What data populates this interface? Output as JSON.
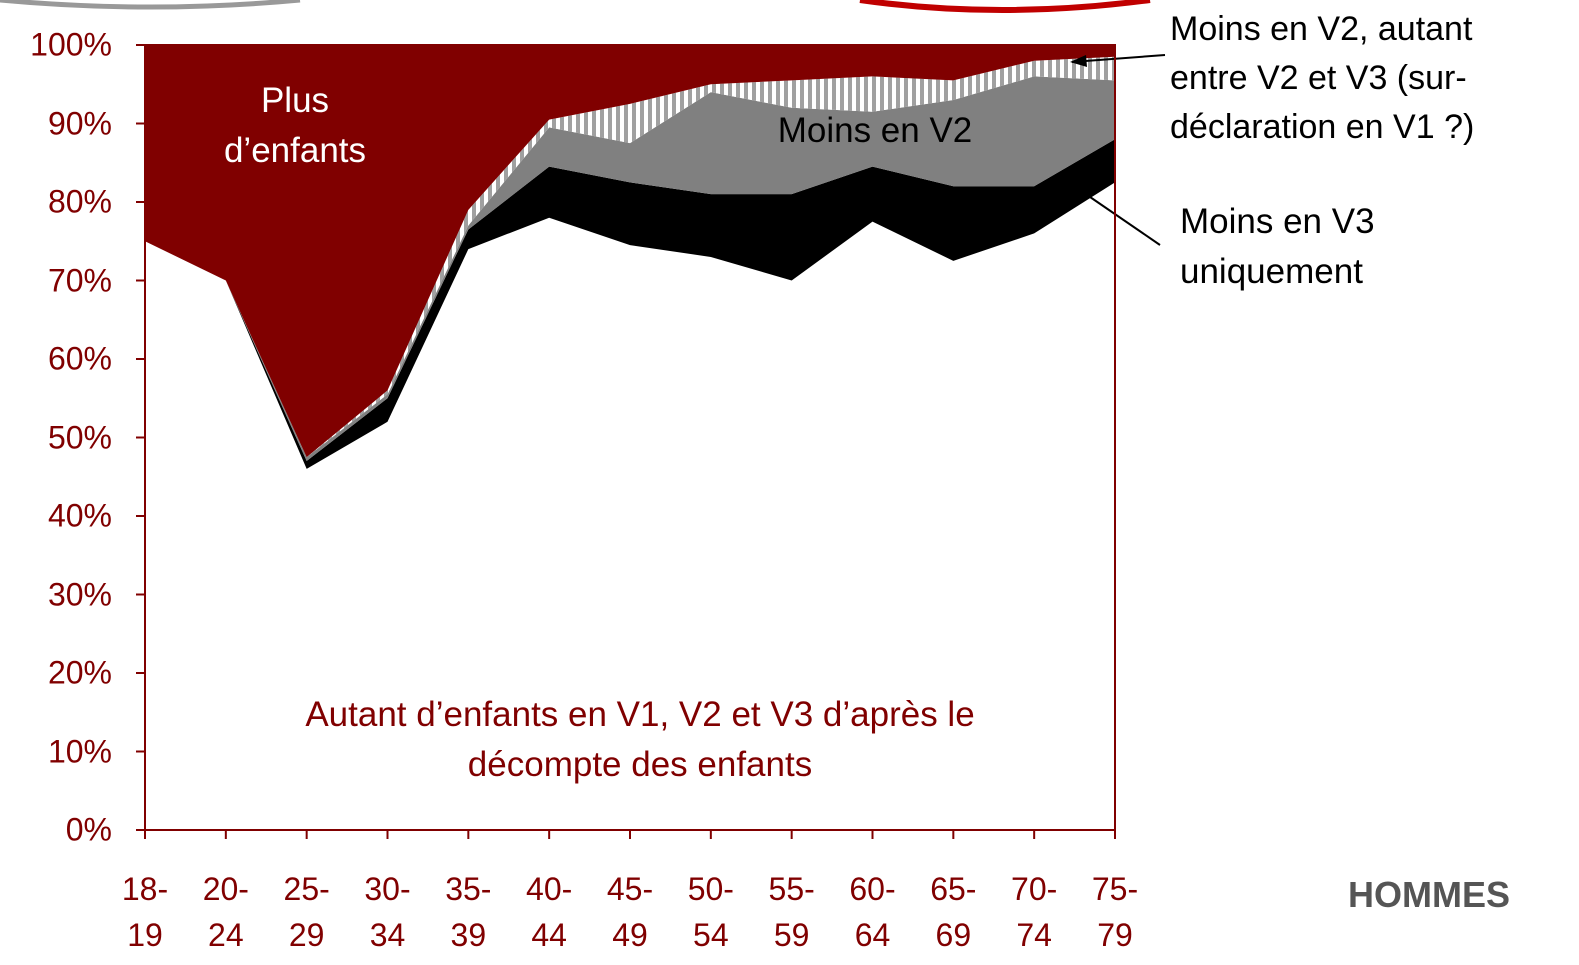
{
  "chart_data": {
    "type": "stacked_area",
    "title": "HOMMES",
    "categories": [
      "18-19",
      "20-24",
      "25-29",
      "30-34",
      "35-39",
      "40-44",
      "45-49",
      "50-54",
      "55-59",
      "60-64",
      "65-69",
      "70-74",
      "75-79"
    ],
    "series": [
      {
        "name": "Autant d’enfants en V1, V2 et V3 d’après le\ndécompte des enfants",
        "color": "#ffffff",
        "values": [
          75,
          70,
          46,
          52,
          74,
          78,
          74.5,
          73,
          70,
          77.5,
          72.5,
          76,
          82.5
        ]
      },
      {
        "name": "Moins en V3\nuniquement",
        "color": "#000000",
        "values": [
          0,
          0,
          1,
          3,
          2.5,
          6.5,
          8,
          8,
          11,
          7,
          9.5,
          6,
          5.5
        ]
      },
      {
        "name": "Moins en V2",
        "color": "#808080",
        "values": [
          0,
          0,
          0.5,
          0.5,
          0.5,
          5,
          5,
          13,
          11,
          7,
          11,
          14,
          7.5
        ]
      },
      {
        "name": "Moins en V2, autant\nentre V2 et V3 (sur-\ndéclaration en V1 ?)",
        "color": "#a0a0a0",
        "hatch": true,
        "values": [
          0,
          0,
          0,
          0.5,
          2,
          1,
          5,
          1,
          3.5,
          4.5,
          2.5,
          2,
          3
        ]
      },
      {
        "name": "Plus\nd’enfants",
        "color": "#800000",
        "values": [
          25,
          30,
          52.5,
          44,
          21,
          9.5,
          7.5,
          5,
          4.5,
          4,
          4.5,
          2,
          1.5
        ]
      }
    ],
    "ylim": [
      0,
      100
    ],
    "yticks": [
      {
        "value": 0,
        "label": "0%"
      },
      {
        "value": 10,
        "label": "10%"
      },
      {
        "value": 20,
        "label": "20%"
      },
      {
        "value": 30,
        "label": "30%"
      },
      {
        "value": 40,
        "label": "40%"
      },
      {
        "value": 50,
        "label": "50%"
      },
      {
        "value": 60,
        "label": "60%"
      },
      {
        "value": 70,
        "label": "70%"
      },
      {
        "value": 80,
        "label": "80%"
      },
      {
        "value": 90,
        "label": "90%"
      },
      {
        "value": 100,
        "label": "100%"
      }
    ]
  }
}
